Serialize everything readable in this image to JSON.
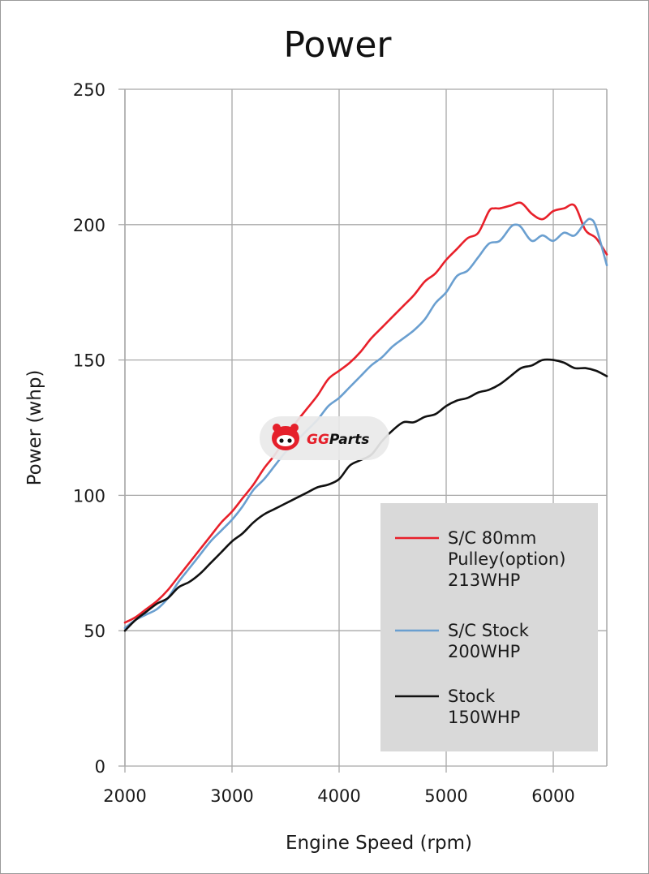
{
  "chart_data": {
    "type": "line",
    "title": "Power",
    "xlabel": "Engine Speed (rpm)",
    "ylabel": "Power (whp)",
    "xlim": [
      2000,
      6500
    ],
    "ylim": [
      0,
      250
    ],
    "xticks": [
      2000,
      3000,
      4000,
      5000,
      6000
    ],
    "yticks": [
      0,
      50,
      100,
      150,
      200,
      250
    ],
    "grid": true,
    "legend_position": "bottom-right",
    "series": [
      {
        "name": "S/C 80mm Pulley(option) 213WHP",
        "label_lines": [
          "S/C 80mm",
          "Pulley(option)",
          "213WHP"
        ],
        "color": "#e8202a",
        "x": [
          2000,
          2100,
          2200,
          2300,
          2400,
          2500,
          2600,
          2700,
          2800,
          2900,
          3000,
          3100,
          3200,
          3300,
          3400,
          3500,
          3600,
          3700,
          3800,
          3900,
          4000,
          4100,
          4200,
          4300,
          4400,
          4500,
          4600,
          4700,
          4800,
          4900,
          5000,
          5100,
          5200,
          5300,
          5400,
          5450,
          5500,
          5600,
          5700,
          5800,
          5900,
          6000,
          6100,
          6200,
          6300,
          6400,
          6500
        ],
        "y": [
          53,
          55,
          58,
          61,
          65,
          70,
          75,
          80,
          85,
          90,
          94,
          99,
          104,
          110,
          115,
          121,
          127,
          132,
          137,
          143,
          146,
          149,
          153,
          158,
          162,
          166,
          170,
          174,
          179,
          182,
          187,
          191,
          195,
          197,
          205,
          206,
          206,
          207,
          208,
          204,
          202,
          205,
          206,
          207,
          198,
          195,
          189
        ]
      },
      {
        "name": "S/C Stock 200WHP",
        "label_lines": [
          "S/C Stock",
          "200WHP"
        ],
        "color": "#6a9fd0",
        "x": [
          2000,
          2100,
          2200,
          2300,
          2400,
          2500,
          2600,
          2700,
          2800,
          2900,
          3000,
          3100,
          3200,
          3300,
          3400,
          3500,
          3600,
          3700,
          3800,
          3900,
          4000,
          4100,
          4200,
          4300,
          4400,
          4500,
          4600,
          4700,
          4800,
          4900,
          5000,
          5100,
          5200,
          5300,
          5400,
          5500,
          5600,
          5650,
          5700,
          5800,
          5900,
          6000,
          6100,
          6200,
          6300,
          6350,
          6400,
          6500
        ],
        "y": [
          51,
          54,
          56,
          58,
          62,
          68,
          73,
          78,
          83,
          87,
          91,
          96,
          102,
          106,
          111,
          116,
          120,
          124,
          128,
          133,
          136,
          140,
          144,
          148,
          151,
          155,
          158,
          161,
          165,
          171,
          175,
          181,
          183,
          188,
          193,
          194,
          199,
          200,
          199,
          194,
          196,
          194,
          197,
          196,
          201,
          202,
          199,
          185
        ]
      },
      {
        "name": "Stock 150WHP",
        "label_lines": [
          "Stock",
          "150WHP"
        ],
        "color": "#111111",
        "x": [
          2000,
          2100,
          2200,
          2300,
          2400,
          2500,
          2600,
          2700,
          2800,
          2900,
          3000,
          3100,
          3200,
          3300,
          3400,
          3500,
          3600,
          3700,
          3800,
          3900,
          4000,
          4100,
          4200,
          4300,
          4400,
          4500,
          4600,
          4700,
          4800,
          4900,
          5000,
          5100,
          5200,
          5300,
          5400,
          5500,
          5600,
          5700,
          5800,
          5900,
          6000,
          6100,
          6200,
          6300,
          6400,
          6500
        ],
        "y": [
          50,
          54,
          57,
          60,
          62,
          66,
          68,
          71,
          75,
          79,
          83,
          86,
          90,
          93,
          95,
          97,
          99,
          101,
          103,
          104,
          106,
          111,
          113,
          115,
          120,
          124,
          127,
          127,
          129,
          130,
          133,
          135,
          136,
          138,
          139,
          141,
          144,
          147,
          148,
          150,
          150,
          149,
          147,
          147,
          146,
          144
        ]
      }
    ]
  },
  "watermark": {
    "text_part1": "GG",
    "text_part2": "Parts",
    "icon": "gg-mascot-icon"
  },
  "colors": {
    "gridline": "#a8a8a8",
    "legend_background": "#d9d9d9",
    "watermark_red": "#e5202b"
  }
}
